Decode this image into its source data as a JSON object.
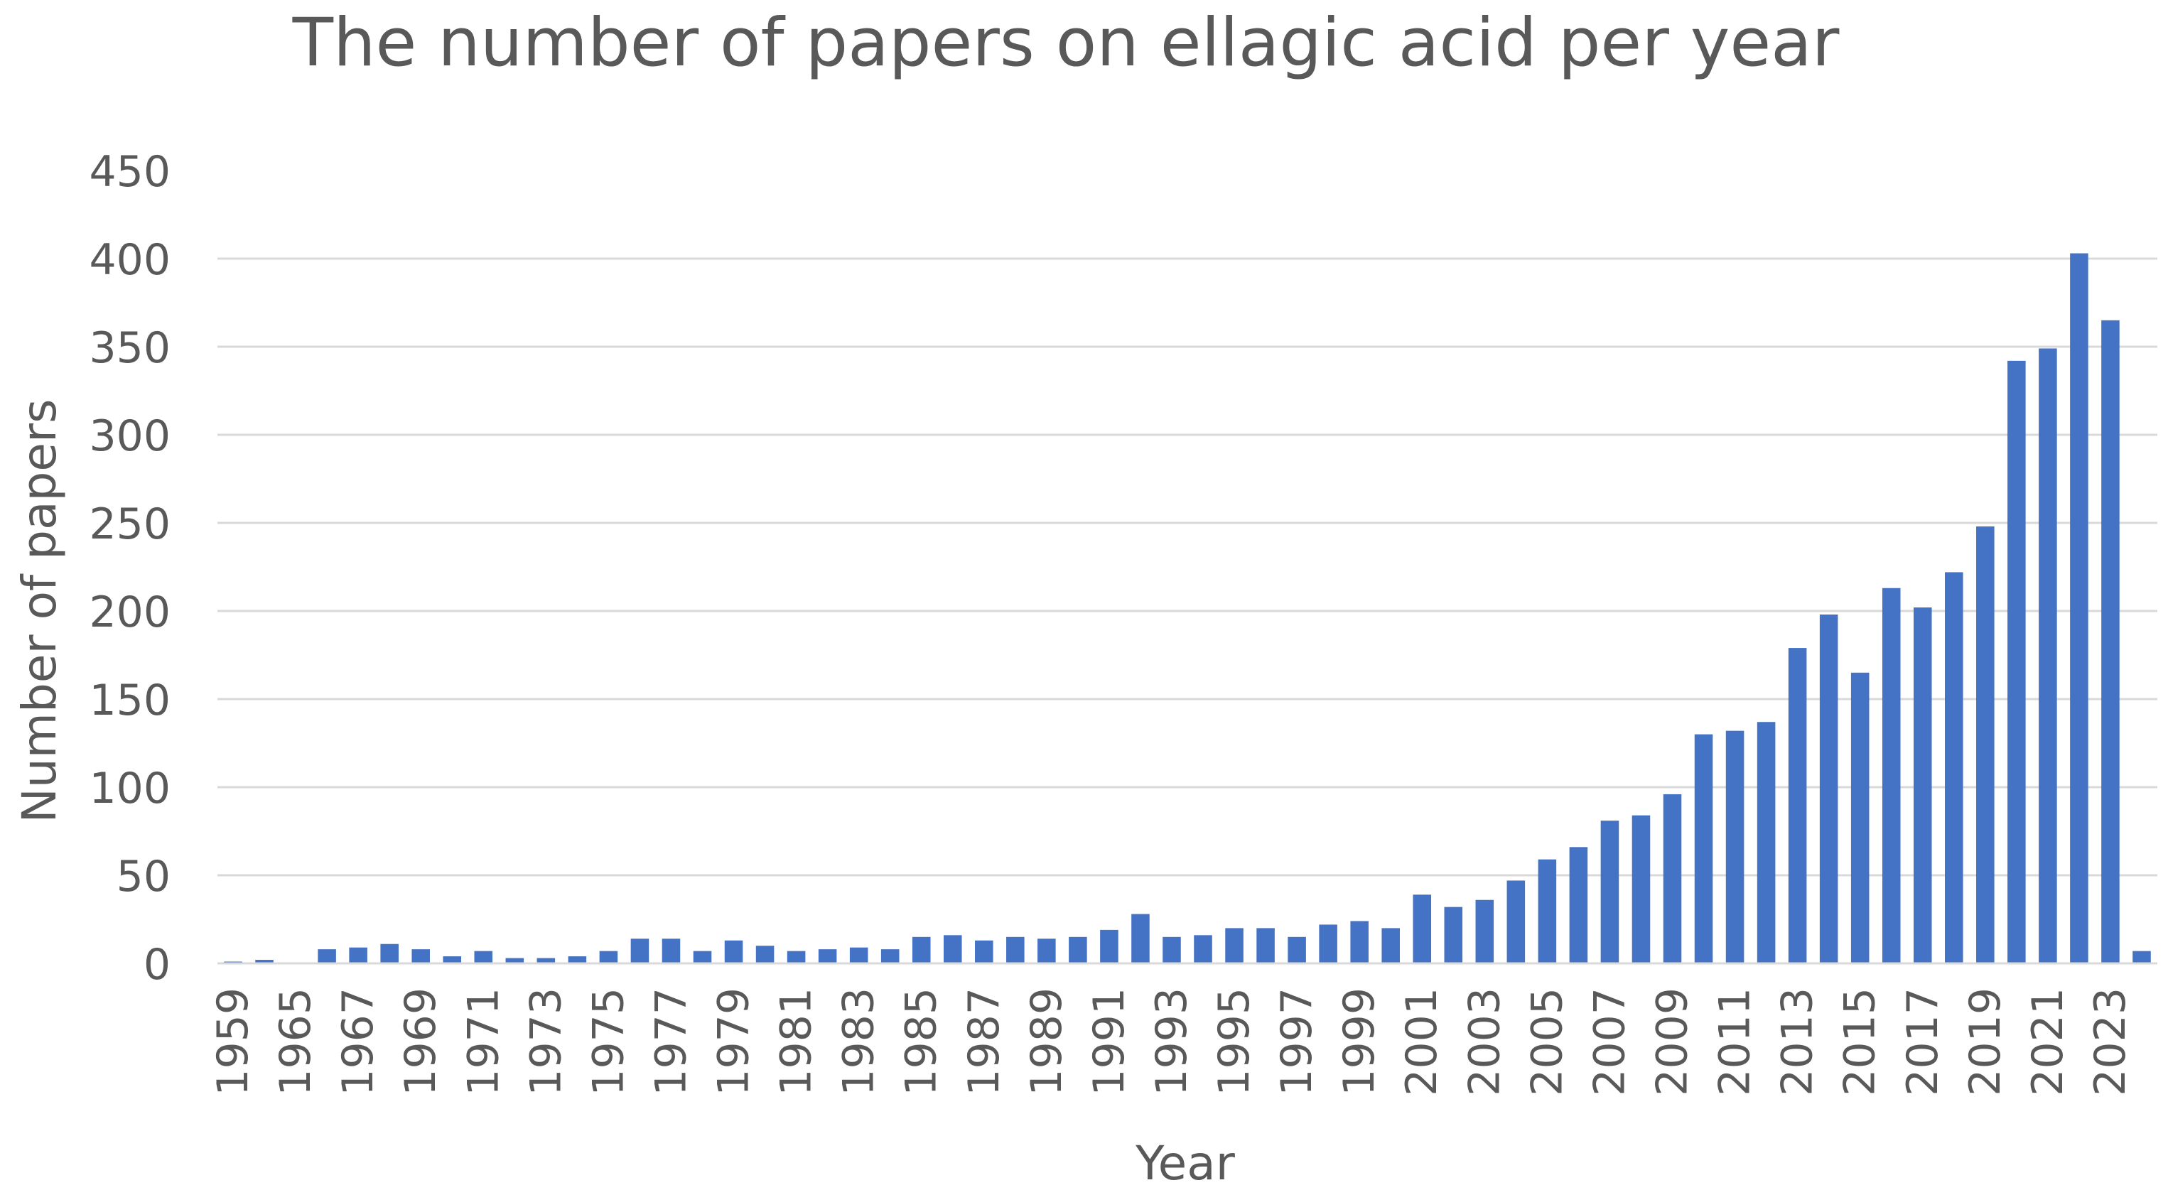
{
  "chart_data": {
    "type": "bar",
    "title": "The number of papers on ellagic acid per year",
    "xlabel": "Year",
    "ylabel": "Number of papers",
    "ylim": [
      0,
      450
    ],
    "yticks": [
      0,
      50,
      100,
      150,
      200,
      250,
      300,
      350,
      400,
      450
    ],
    "grid": true,
    "legend": "none",
    "bar_color": "#4472c4",
    "categories": [
      "1959",
      "1964",
      "1965",
      "1966",
      "1967",
      "1968",
      "1969",
      "1970",
      "1971",
      "1972",
      "1973",
      "1974",
      "1975",
      "1976",
      "1977",
      "1978",
      "1979",
      "1980",
      "1981",
      "1982",
      "1983",
      "1984",
      "1985",
      "1986",
      "1987",
      "1988",
      "1989",
      "1990",
      "1991",
      "1992",
      "1993",
      "1994",
      "1995",
      "1996",
      "1997",
      "1998",
      "1999",
      "2000",
      "2001",
      "2002",
      "2003",
      "2004",
      "2005",
      "2006",
      "2007",
      "2008",
      "2009",
      "2010",
      "2011",
      "2012",
      "2013",
      "2014",
      "2015",
      "2016",
      "2017",
      "2018",
      "2019",
      "2020",
      "2021",
      "2022",
      "2023",
      "2024"
    ],
    "tick_labels": [
      "1959",
      "1965",
      "1967",
      "1969",
      "1971",
      "1973",
      "1975",
      "1977",
      "1979",
      "1981",
      "1983",
      "1985",
      "1987",
      "1989",
      "1991",
      "1993",
      "1995",
      "1997",
      "1999",
      "2001",
      "2003",
      "2005",
      "2007",
      "2009",
      "2011",
      "2013",
      "2015",
      "2017",
      "2019",
      "2021",
      "2023"
    ],
    "values": [
      1,
      2,
      0,
      8,
      9,
      11,
      8,
      4,
      7,
      3,
      3,
      4,
      7,
      14,
      14,
      7,
      13,
      10,
      7,
      8,
      9,
      8,
      15,
      16,
      13,
      15,
      14,
      15,
      19,
      28,
      15,
      16,
      20,
      20,
      15,
      22,
      24,
      20,
      39,
      32,
      36,
      47,
      59,
      66,
      81,
      84,
      96,
      130,
      132,
      137,
      179,
      198,
      165,
      213,
      202,
      222,
      248,
      342,
      349,
      403,
      365,
      7
    ]
  }
}
